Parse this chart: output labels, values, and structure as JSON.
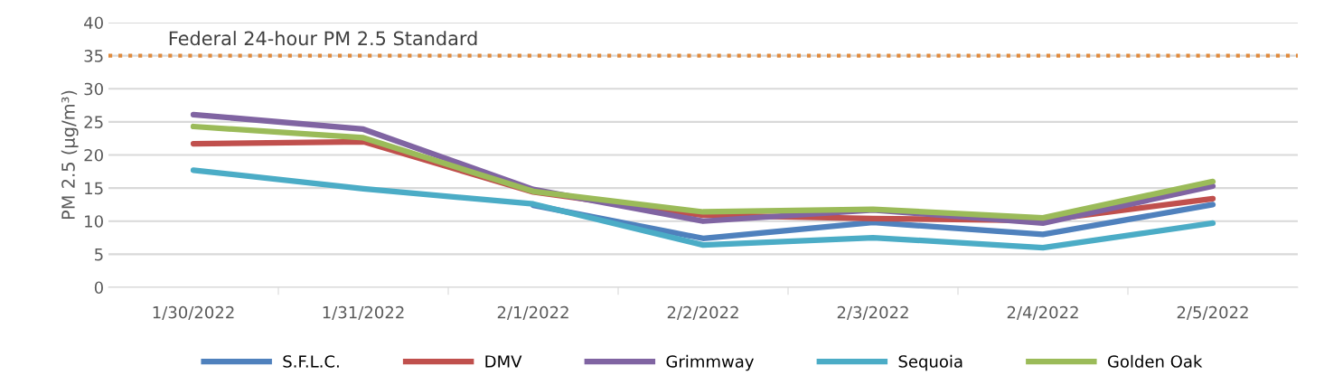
{
  "chart_data": {
    "type": "line",
    "ylabel": "PM 2.5 (µg/m³)",
    "categories": [
      "1/30/2022",
      "1/31/2022",
      "2/1/2022",
      "2/2/2022",
      "2/3/2022",
      "2/4/2022",
      "2/5/2022"
    ],
    "series": [
      {
        "name": "S.F.L.C.",
        "color": "#4f81bd",
        "values": [
          null,
          null,
          12.4,
          7.4,
          9.8,
          8.0,
          12.5
        ]
      },
      {
        "name": "DMV",
        "color": "#c0504d",
        "values": [
          21.7,
          22.0,
          14.4,
          10.9,
          10.4,
          10.1,
          13.4
        ]
      },
      {
        "name": "Grimmway",
        "color": "#8064a2",
        "values": [
          26.1,
          23.9,
          14.8,
          10.0,
          11.7,
          9.7,
          15.3
        ]
      },
      {
        "name": "Sequoia",
        "color": "#4bacc6",
        "values": [
          17.7,
          14.9,
          12.6,
          6.4,
          7.5,
          6.0,
          9.7
        ]
      },
      {
        "name": "Golden Oak",
        "color": "#9bbb59",
        "values": [
          24.3,
          22.6,
          14.5,
          11.4,
          11.8,
          10.5,
          16.0
        ]
      }
    ],
    "ylim": [
      0,
      40
    ],
    "yticks": [
      0,
      5,
      10,
      15,
      20,
      25,
      30,
      35,
      40
    ],
    "ref_lines": [
      {
        "axis": "y",
        "value": 35,
        "label": "Federal 24-hour PM 2.5 Standard",
        "color": "#e08a3c",
        "line_style": "dotted"
      }
    ],
    "grid": "y",
    "legend": "bottom",
    "marker": "none",
    "line_style": "solid"
  }
}
